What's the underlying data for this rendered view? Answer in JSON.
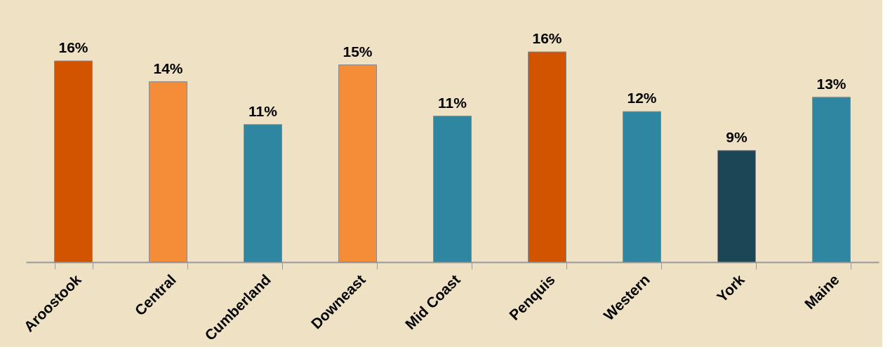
{
  "chart_data": {
    "type": "bar",
    "categories": [
      "Aroostook",
      "Central",
      "Cumberland",
      "Downeast",
      "Mid Coast",
      "Penquis",
      "Western",
      "York",
      "Maine"
    ],
    "values": [
      15.5,
      13.9,
      10.6,
      15.2,
      11.25,
      16.2,
      11.6,
      8.6,
      12.7
    ],
    "colors": [
      "#d35400",
      "#f58c38",
      "#2e86a0",
      "#f58c38",
      "#2e86a0",
      "#d35400",
      "#2e86a0",
      "#1b4656",
      "#2e86a0"
    ],
    "value_labels": [
      "16%",
      "14%",
      "11%",
      "15%",
      "11%",
      "16%",
      "12%",
      "9%",
      "13%"
    ],
    "grid": false,
    "tick_labels": "x"
  }
}
